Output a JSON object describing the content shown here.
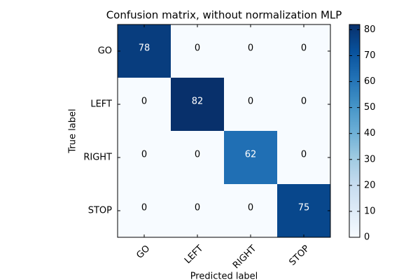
{
  "chart_data": {
    "type": "heatmap",
    "title": "Confusion matrix, without normalization MLP",
    "x_label": "Predicted label",
    "y_label": "True label",
    "x_categories": [
      "GO",
      "LEFT",
      "RIGHT",
      "STOP"
    ],
    "y_categories": [
      "GO",
      "LEFT",
      "RIGHT",
      "STOP"
    ],
    "values": [
      [
        78,
        0,
        0,
        0
      ],
      [
        0,
        82,
        0,
        0
      ],
      [
        0,
        0,
        62,
        0
      ],
      [
        0,
        0,
        0,
        75
      ]
    ],
    "cmap": "Blues",
    "clim": [
      0,
      82
    ],
    "cbar_ticks": [
      0,
      10,
      20,
      30,
      40,
      50,
      60,
      70,
      80
    ]
  }
}
